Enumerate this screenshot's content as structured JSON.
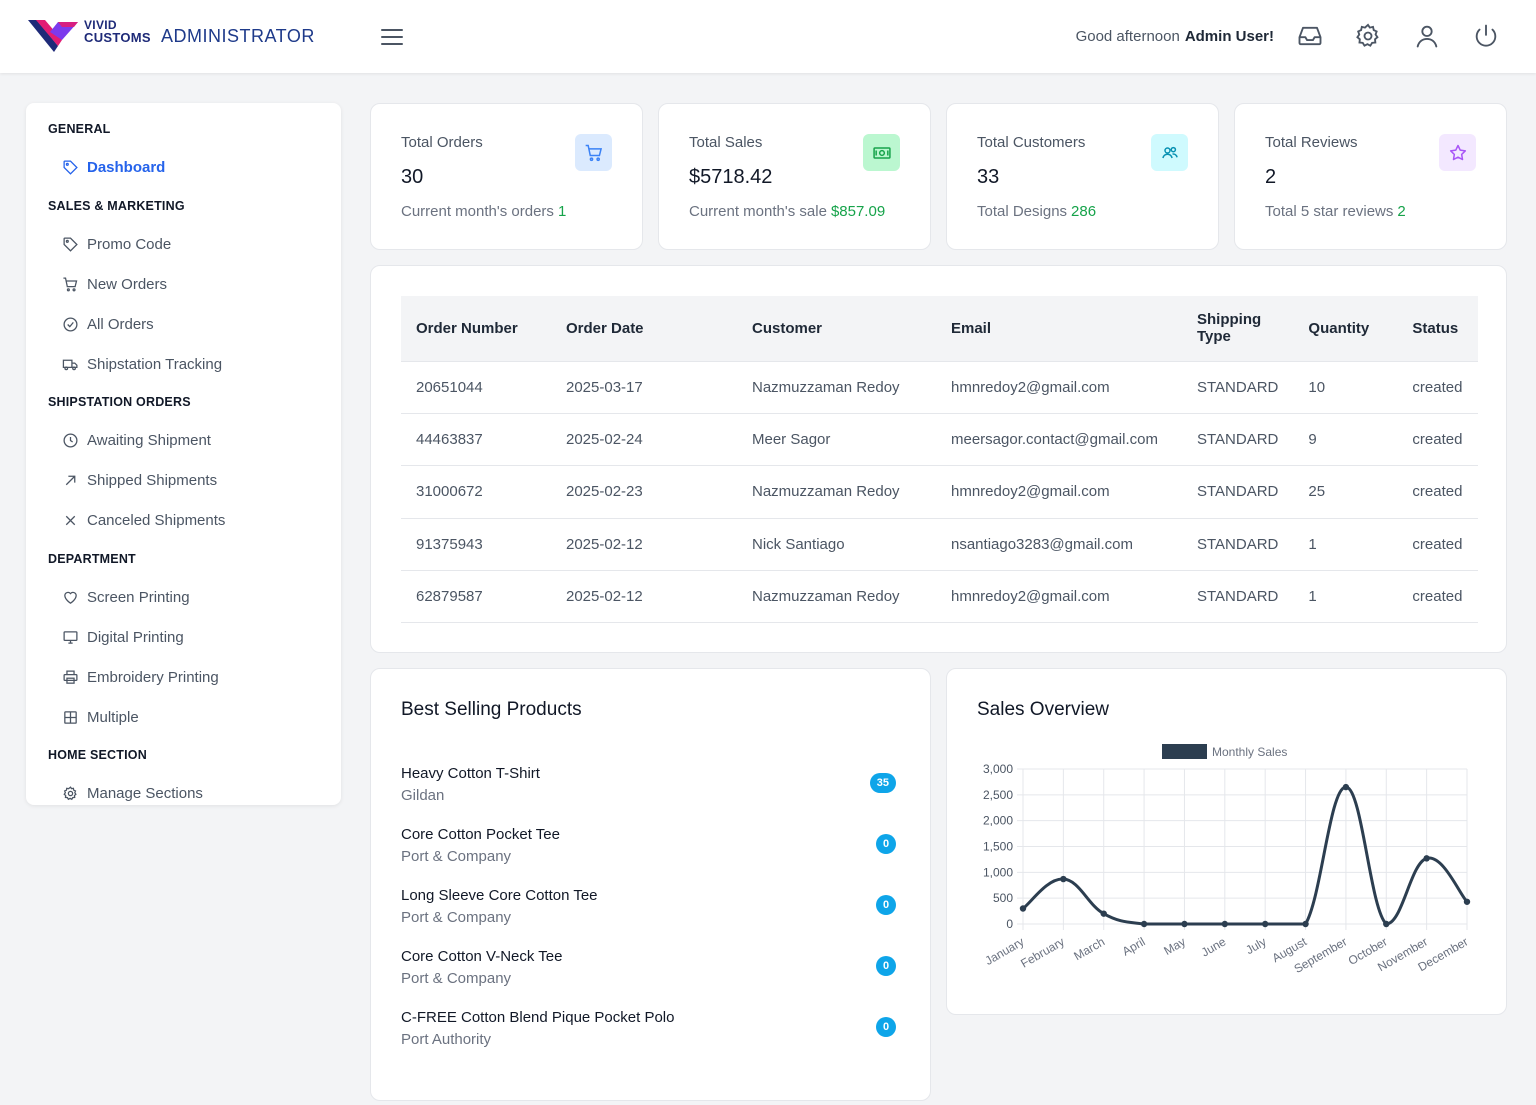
{
  "header": {
    "logo_line1": "VIVID",
    "logo_line2": "CUSTOMS",
    "app_title": "ADMINISTRATOR",
    "greeting": "Good afternoon",
    "user_name": "Admin User!"
  },
  "sidebar": {
    "sections": [
      {
        "title": "GENERAL",
        "items": [
          {
            "label": "Dashboard",
            "icon": "tag-icon",
            "active": true
          }
        ]
      },
      {
        "title": "SALES & MARKETING",
        "items": [
          {
            "label": "Promo Code",
            "icon": "tag-icon"
          },
          {
            "label": "New Orders",
            "icon": "cart-icon"
          },
          {
            "label": "All Orders",
            "icon": "check-circle-icon"
          },
          {
            "label": "Shipstation Tracking",
            "icon": "truck-icon"
          }
        ]
      },
      {
        "title": "SHIPSTATION ORDERS",
        "items": [
          {
            "label": "Awaiting Shipment",
            "icon": "clock-icon"
          },
          {
            "label": "Shipped Shipments",
            "icon": "arrow-up-right-icon"
          },
          {
            "label": "Canceled Shipments",
            "icon": "x-icon"
          }
        ]
      },
      {
        "title": "DEPARTMENT",
        "items": [
          {
            "label": "Screen Printing",
            "icon": "heart-icon"
          },
          {
            "label": "Digital Printing",
            "icon": "monitor-icon"
          },
          {
            "label": "Embroidery Printing",
            "icon": "printer-icon"
          },
          {
            "label": "Multiple",
            "icon": "grid-icon"
          }
        ]
      },
      {
        "title": "HOME SECTION",
        "items": [
          {
            "label": "Manage Sections",
            "icon": "gear-icon"
          }
        ]
      }
    ]
  },
  "stats": [
    {
      "label": "Total Orders",
      "value": "30",
      "sub": "Current month's orders",
      "sub_value": "1",
      "icon": "cart-icon",
      "icon_bg": "#dbeafe",
      "icon_color": "#3b82f6"
    },
    {
      "label": "Total Sales",
      "value": "$5718.42",
      "sub": "Current month's sale",
      "sub_value": "$857.09",
      "icon": "cash-icon",
      "icon_bg": "#bbf7d0",
      "icon_color": "#16a34a"
    },
    {
      "label": "Total Customers",
      "value": "33",
      "sub": "Total Designs",
      "sub_value": "286",
      "icon": "users-icon",
      "icon_bg": "#cffafe",
      "icon_color": "#0891b2"
    },
    {
      "label": "Total Reviews",
      "value": "2",
      "sub": "Total 5 star reviews",
      "sub_value": "2",
      "icon": "star-icon",
      "icon_bg": "#f3e8ff",
      "icon_color": "#a855f7"
    }
  ],
  "orders": {
    "columns": [
      "Order Number",
      "Order Date",
      "Customer",
      "Email",
      "Shipping Type",
      "Quantity",
      "Status"
    ],
    "rows": [
      [
        "20651044",
        "2025-03-17",
        "Nazmuzzaman Redoy",
        "hmnredoy2@gmail.com",
        "STANDARD",
        "10",
        "created"
      ],
      [
        "44463837",
        "2025-02-24",
        "Meer Sagor",
        "meersagor.contact@gmail.com",
        "STANDARD",
        "9",
        "created"
      ],
      [
        "31000672",
        "2025-02-23",
        "Nazmuzzaman Redoy",
        "hmnredoy2@gmail.com",
        "STANDARD",
        "25",
        "created"
      ],
      [
        "91375943",
        "2025-02-12",
        "Nick Santiago",
        "nsantiago3283@gmail.com",
        "STANDARD",
        "1",
        "created"
      ],
      [
        "62879587",
        "2025-02-12",
        "Nazmuzzaman Redoy",
        "hmnredoy2@gmail.com",
        "STANDARD",
        "1",
        "created"
      ]
    ]
  },
  "best_selling": {
    "title": "Best Selling Products",
    "items": [
      {
        "name": "Heavy Cotton T-Shirt",
        "brand": "Gildan",
        "count": "35"
      },
      {
        "name": "Core Cotton Pocket Tee",
        "brand": "Port & Company",
        "count": "0"
      },
      {
        "name": "Long Sleeve Core Cotton Tee",
        "brand": "Port & Company",
        "count": "0"
      },
      {
        "name": "Core Cotton V-Neck Tee",
        "brand": "Port & Company",
        "count": "0"
      },
      {
        "name": "C-FREE Cotton Blend Pique Pocket Polo",
        "brand": "Port Authority",
        "count": "0"
      }
    ]
  },
  "sales_overview": {
    "title": "Sales Overview"
  },
  "chart_data": {
    "type": "line",
    "categories": [
      "January",
      "February",
      "March",
      "April",
      "May",
      "June",
      "July",
      "August",
      "September",
      "October",
      "November",
      "December"
    ],
    "series": [
      {
        "name": "Monthly Sales",
        "values": [
          300,
          870,
          200,
          0,
          0,
          0,
          0,
          0,
          2650,
          0,
          1270,
          430
        ]
      }
    ],
    "ylim": [
      0,
      3000
    ],
    "yticks": [
      "0",
      "500",
      "1,000",
      "1,500",
      "2,000",
      "2,500",
      "3,000"
    ],
    "grid": true,
    "legend": "top",
    "color": "#2c3e50"
  }
}
